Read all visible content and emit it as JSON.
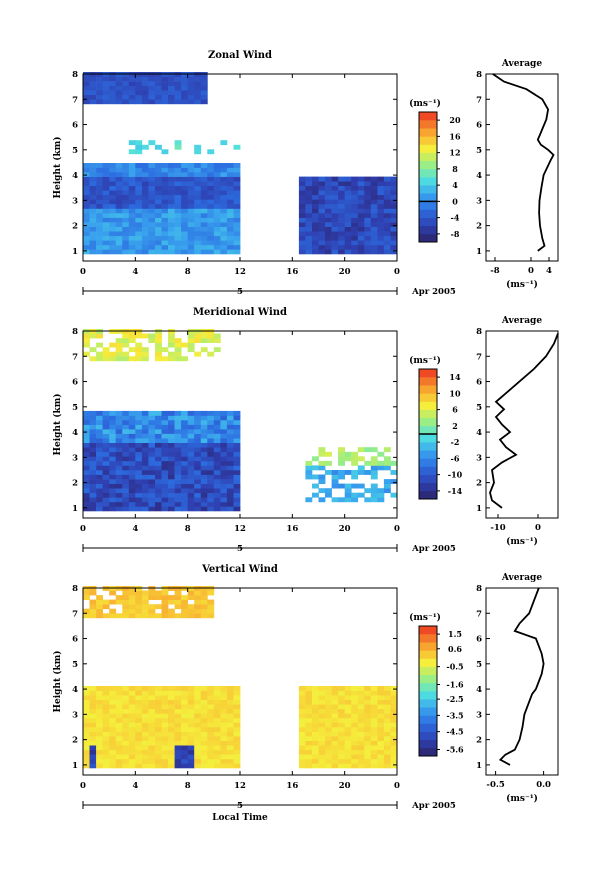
{
  "chart_data": [
    {
      "type": "heatmap",
      "title": "Zonal Wind",
      "ylabel": "Height (km)",
      "unit": "(ms⁻¹)",
      "date_label": "Apr 2005",
      "day_label": "5",
      "x_ticks": [
        "0",
        "4",
        "8",
        "12",
        "16",
        "20",
        "0"
      ],
      "y_ticks": [
        "1",
        "2",
        "3",
        "4",
        "5",
        "6",
        "7",
        "8"
      ],
      "xlim": [
        0,
        24
      ],
      "ylim": [
        0.6,
        8
      ],
      "colorbar_ticks": [
        "20",
        "16",
        "12",
        "8",
        "4",
        "0",
        "-4",
        "-8"
      ],
      "colorbar_range": [
        -10,
        22
      ],
      "colorbar_zero_line": 0,
      "profile": {
        "title": "Average",
        "xlabel": "(ms⁻¹)",
        "x_ticks": [
          "-8",
          "0",
          "4"
        ],
        "xlim": [
          -10,
          6
        ],
        "height": [
          1.0,
          1.2,
          1.5,
          2.0,
          2.5,
          3.0,
          3.5,
          4.0,
          4.3,
          4.6,
          4.8,
          5.0,
          5.2,
          5.4,
          5.6,
          6.2,
          6.6,
          7.0,
          7.4,
          7.7,
          8.0
        ],
        "value": [
          1.5,
          3.0,
          2.5,
          2.0,
          1.8,
          1.9,
          2.3,
          2.8,
          3.6,
          4.4,
          5.0,
          3.8,
          2.2,
          1.5,
          2.0,
          3.4,
          3.8,
          2.5,
          -1.0,
          -6.0,
          -8.5
        ]
      }
    },
    {
      "type": "heatmap",
      "title": "Meridional Wind",
      "ylabel": "Height (km)",
      "unit": "(ms⁻¹)",
      "date_label": "Apr 2005",
      "day_label": "5",
      "x_ticks": [
        "0",
        "4",
        "8",
        "12",
        "16",
        "20",
        "0"
      ],
      "y_ticks": [
        "1",
        "2",
        "3",
        "4",
        "5",
        "6",
        "7",
        "8"
      ],
      "xlim": [
        0,
        24
      ],
      "ylim": [
        0.6,
        8
      ],
      "colorbar_ticks": [
        "14",
        "10",
        "6",
        "2",
        "-2",
        "-6",
        "-10",
        "-14"
      ],
      "colorbar_range": [
        -16,
        16
      ],
      "colorbar_zero_line": 0,
      "profile": {
        "title": "Average",
        "xlabel": "(ms⁻¹)",
        "x_ticks": [
          "-10",
          "0"
        ],
        "xlim": [
          -13,
          5
        ],
        "height": [
          1.0,
          1.3,
          1.6,
          2.0,
          2.5,
          2.8,
          3.1,
          3.4,
          3.7,
          4.0,
          4.3,
          4.6,
          4.9,
          5.2,
          6.5,
          7.0,
          7.5,
          7.9
        ],
        "value": [
          -9.0,
          -11.5,
          -12.0,
          -11.0,
          -11.5,
          -9.0,
          -5.5,
          -8.0,
          -9.5,
          -7.0,
          -9.0,
          -10.5,
          -8.5,
          -10.5,
          -1.0,
          2.0,
          4.0,
          5.0
        ]
      }
    },
    {
      "type": "heatmap",
      "title": "Vertical Wind",
      "ylabel": "Height (km)",
      "xlabel": "Local Time",
      "unit": "(ms⁻¹)",
      "date_label": "Apr 2005",
      "day_label": "5",
      "x_ticks": [
        "0",
        "4",
        "8",
        "12",
        "16",
        "20",
        "0"
      ],
      "y_ticks": [
        "1",
        "2",
        "3",
        "4",
        "5",
        "6",
        "7",
        "8"
      ],
      "xlim": [
        0,
        24
      ],
      "ylim": [
        0.6,
        8
      ],
      "colorbar_ticks": [
        "1.5",
        "0.6",
        "-0.5",
        "-1.6",
        "-2.5",
        "-3.5",
        "-4.5",
        "-5.6"
      ],
      "colorbar_range": [
        -6.0,
        2.0
      ],
      "profile": {
        "title": "Average",
        "xlabel": "(ms⁻¹)",
        "x_ticks": [
          "-0.5",
          "0.0"
        ],
        "xlim": [
          -0.6,
          0.15
        ],
        "height": [
          1.0,
          1.2,
          1.4,
          1.6,
          2.0,
          2.5,
          3.0,
          3.5,
          3.8,
          4.0,
          4.3,
          4.6,
          5.0,
          5.4,
          5.7,
          6.0,
          6.3,
          6.6,
          7.0,
          7.5,
          8.0
        ],
        "value": [
          -0.35,
          -0.45,
          -0.4,
          -0.3,
          -0.25,
          -0.22,
          -0.2,
          -0.15,
          -0.12,
          -0.08,
          -0.05,
          -0.02,
          0.0,
          -0.02,
          -0.05,
          -0.08,
          -0.3,
          -0.25,
          -0.15,
          -0.1,
          -0.05
        ]
      }
    }
  ]
}
